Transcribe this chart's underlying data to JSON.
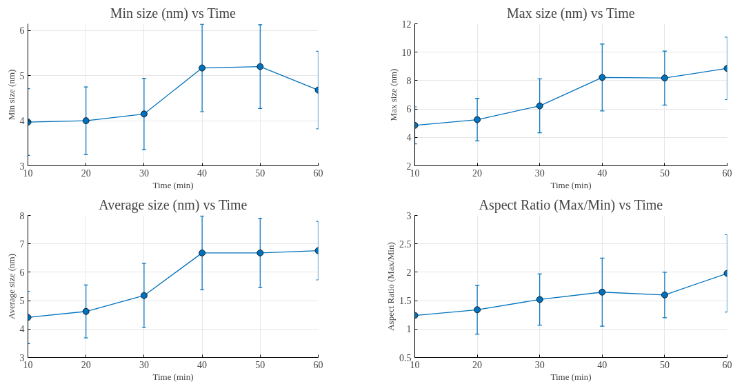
{
  "chart_data": [
    {
      "type": "line",
      "title": "Min size (nm) vs Time",
      "xlabel": "Time (min)",
      "ylabel": "Min size (nm)",
      "x": [
        10,
        20,
        30,
        40,
        50,
        60
      ],
      "xlim": [
        10,
        60
      ],
      "xticks": [
        10,
        20,
        30,
        40,
        50,
        60
      ],
      "ylim": [
        3,
        6.15
      ],
      "yticks": [
        3,
        4,
        5,
        6
      ],
      "grid": true,
      "marker": "circle",
      "line_style": "solid",
      "series": [
        {
          "color": "#0072bd",
          "values": [
            3.97,
            4.0,
            4.15,
            5.17,
            5.2,
            4.68
          ],
          "errors": [
            0.74,
            0.75,
            0.79,
            0.97,
            0.93,
            0.86
          ]
        }
      ]
    },
    {
      "type": "line",
      "title": "Max size (nm) vs Time",
      "xlabel": "Time (min)",
      "ylabel": "Max size (nm)",
      "x": [
        10,
        20,
        30,
        40,
        50,
        60
      ],
      "xlim": [
        10,
        60
      ],
      "xticks": [
        10,
        20,
        30,
        40,
        50,
        60
      ],
      "ylim": [
        2,
        12
      ],
      "yticks": [
        2,
        4,
        6,
        8,
        10,
        12
      ],
      "grid": true,
      "marker": "circle",
      "line_style": "solid",
      "series": [
        {
          "color": "#0072bd",
          "values": [
            4.85,
            5.25,
            6.22,
            8.22,
            8.18,
            8.86
          ],
          "errors": [
            1.3,
            1.5,
            1.9,
            2.35,
            1.9,
            2.2
          ]
        }
      ]
    },
    {
      "type": "line",
      "title": "Average size (nm) vs Time",
      "xlabel": "Time (min)",
      "ylabel": "Average size (nm)",
      "x": [
        10,
        20,
        30,
        40,
        50,
        60
      ],
      "xlim": [
        10,
        60
      ],
      "xticks": [
        10,
        20,
        30,
        40,
        50,
        60
      ],
      "ylim": [
        3,
        8
      ],
      "yticks": [
        3,
        4,
        5,
        6,
        7,
        8
      ],
      "grid": true,
      "marker": "circle",
      "line_style": "solid",
      "series": [
        {
          "color": "#0072bd",
          "values": [
            4.41,
            4.62,
            5.18,
            6.68,
            6.68,
            6.76
          ],
          "errors": [
            0.92,
            0.93,
            1.13,
            1.3,
            1.22,
            1.03
          ]
        }
      ]
    },
    {
      "type": "line",
      "title": "Aspect Ratio (Max/Min) vs Time",
      "xlabel": "Time (min)",
      "ylabel": "Aspect Ratio (Max/Min)",
      "x": [
        10,
        20,
        30,
        40,
        50,
        60
      ],
      "xlim": [
        10,
        60
      ],
      "xticks": [
        10,
        20,
        30,
        40,
        50,
        60
      ],
      "ylim": [
        0.5,
        3
      ],
      "yticks": [
        0.5,
        1,
        1.5,
        2,
        2.5,
        3
      ],
      "grid": true,
      "marker": "circle",
      "line_style": "solid",
      "series": [
        {
          "color": "#0072bd",
          "values": [
            1.24,
            1.34,
            1.52,
            1.65,
            1.6,
            1.98
          ],
          "errors": [
            null,
            0.43,
            0.45,
            0.6,
            0.4,
            0.68
          ]
        }
      ]
    }
  ]
}
